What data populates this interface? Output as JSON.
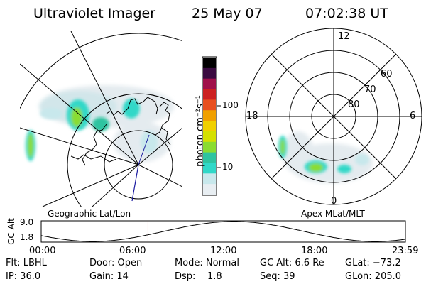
{
  "header": {
    "instrument": "Ultraviolet Imager",
    "date": "25 May 07",
    "time": "07:02:38 UT"
  },
  "left_map": {
    "caption": "Geographic Lat/Lon"
  },
  "right_map": {
    "caption": "Apex MLat/MLT",
    "mlt_labels": [
      "12",
      "18",
      "6",
      "0"
    ],
    "lat_labels": [
      "60",
      "70",
      "80"
    ]
  },
  "colorbar": {
    "label": "photon cm⁻²s⁻¹",
    "ticks": [
      "100",
      "10"
    ],
    "scale": "log",
    "colors": [
      "#e8eef2",
      "#c8e8ec",
      "#30d8c8",
      "#2ec4a0",
      "#8adc30",
      "#d4e000",
      "#f0d000",
      "#f0a000",
      "#e85020",
      "#cc2020",
      "#a0104a",
      "#3a0a40",
      "#000000"
    ]
  },
  "gc_alt_plot": {
    "ylabel": "GC Alt",
    "yticks": [
      "9.0",
      "1.8"
    ],
    "xticks": [
      "00:00",
      "06:00",
      "12:00",
      "18:00",
      "23:59"
    ],
    "marker_time_hours": 7.04,
    "line_color": "#000000",
    "marker_color": "#e02020"
  },
  "status": {
    "row1": [
      {
        "label": "Flt: LBHL"
      },
      {
        "label": "Door: Open"
      },
      {
        "label": "Mode: Normal"
      },
      {
        "label": "GC Alt: 6.6 Re"
      },
      {
        "label": "GLat: −73.2"
      }
    ],
    "row2": [
      {
        "label": "IP: 36.0"
      },
      {
        "label": "Gain: 14"
      },
      {
        "label": "Dsp:    1.8"
      },
      {
        "label": "Seq: 39"
      },
      {
        "label": "GLon: 205.0"
      }
    ]
  }
}
